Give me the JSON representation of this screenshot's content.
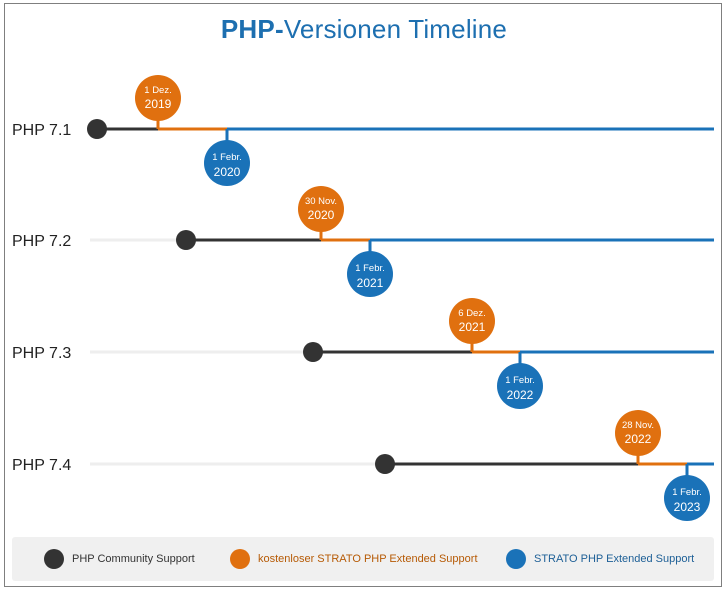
{
  "title": {
    "strong": "PHP-",
    "rest": "Versionen Timeline"
  },
  "colors": {
    "community": "#333333",
    "free_extended": "#e0700f",
    "paid_extended": "#1a72b8",
    "title": "#1d6fb0",
    "track": "#eeeeee"
  },
  "legend": {
    "community": "PHP Community Support",
    "free_extended": "kostenloser STRATO PHP Extended Support",
    "paid_extended": "STRATO PHP Extended Support"
  },
  "chart_data": {
    "type": "timeline",
    "series": [
      {
        "label": "PHP 7.1",
        "free_extended_start": {
          "line1": "1 Dez.",
          "line2": "2019"
        },
        "paid_extended_start": {
          "line1": "1 Febr.",
          "line2": "2020"
        }
      },
      {
        "label": "PHP 7.2",
        "free_extended_start": {
          "line1": "30 Nov.",
          "line2": "2020"
        },
        "paid_extended_start": {
          "line1": "1 Febr.",
          "line2": "2021"
        }
      },
      {
        "label": "PHP 7.3",
        "free_extended_start": {
          "line1": "6 Dez.",
          "line2": "2021"
        },
        "paid_extended_start": {
          "line1": "1 Febr.",
          "line2": "2022"
        }
      },
      {
        "label": "PHP 7.4",
        "free_extended_start": {
          "line1": "28 Nov.",
          "line2": "2022"
        },
        "paid_extended_start": {
          "line1": "1 Febr.",
          "line2": "2023"
        }
      }
    ]
  }
}
